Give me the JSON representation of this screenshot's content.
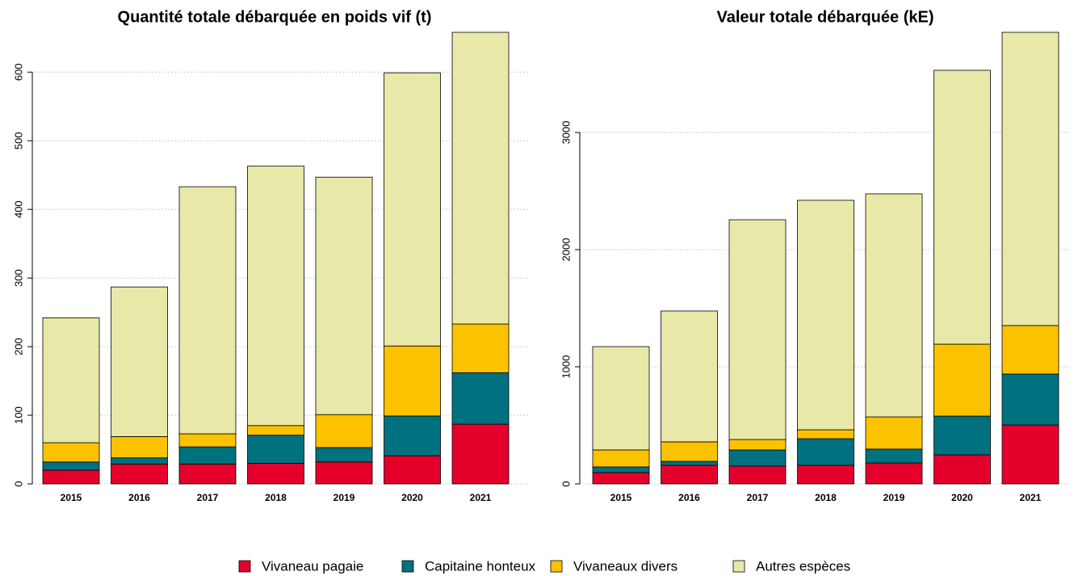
{
  "chart_data": [
    {
      "type": "bar",
      "stacked": true,
      "title": "Quantité totale débarquée en poids vif (t)",
      "categories": [
        "2015",
        "2016",
        "2017",
        "2018",
        "2019",
        "2020",
        "2021"
      ],
      "series": [
        {
          "name": "Vivaneau pagaie",
          "color": "#e4002b",
          "values": [
            20,
            29,
            29,
            30,
            32,
            41,
            87
          ]
        },
        {
          "name": "Capitaine honteux",
          "color": "#00717f",
          "values": [
            12,
            9,
            25,
            41,
            21,
            58,
            75
          ]
        },
        {
          "name": "Vivaneaux divers",
          "color": "#fcc200",
          "values": [
            28,
            31,
            19,
            14,
            48,
            102,
            71
          ]
        },
        {
          "name": "Autres espèces",
          "color": "#e8e8a8",
          "values": [
            182,
            218,
            360,
            378,
            346,
            398,
            425
          ]
        }
      ],
      "ylim": [
        0,
        658
      ],
      "yticks": [
        0,
        100,
        200,
        300,
        400,
        500,
        600
      ],
      "grid": true
    },
    {
      "type": "bar",
      "stacked": true,
      "title": "Valeur totale débarquée (kE)",
      "categories": [
        "2015",
        "2016",
        "2017",
        "2018",
        "2019",
        "2020",
        "2021"
      ],
      "series": [
        {
          "values": [
            97,
            159,
            152,
            159,
            179,
            248,
            503
          ]
        },
        {
          "values": [
            48,
            34,
            138,
            227,
            118,
            331,
            435
          ]
        },
        {
          "values": [
            145,
            166,
            89,
            76,
            275,
            614,
            414
          ]
        },
        {
          "values": [
            882,
            1117,
            1876,
            1959,
            1904,
            2338,
            2503
          ]
        }
      ],
      "ylim": [
        0,
        3855
      ],
      "yticks": [
        0,
        1000,
        2000,
        3000
      ],
      "grid": true
    }
  ]
}
